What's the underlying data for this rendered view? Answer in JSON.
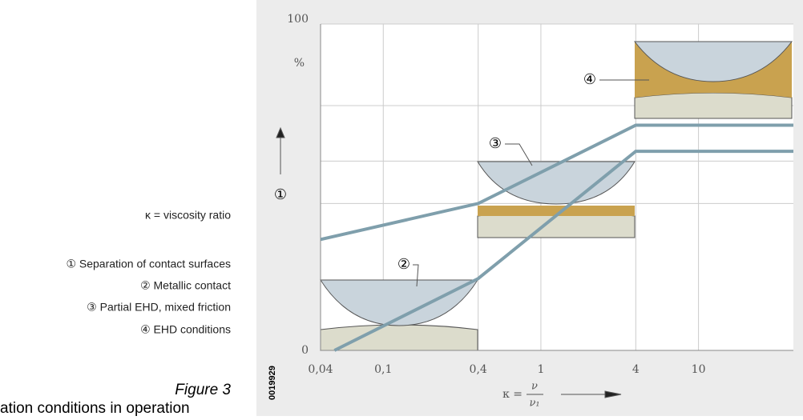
{
  "chart_data": {
    "type": "line",
    "side_texts": [
      "κ = viscosity ratio",
      "① Separation of contact surfaces",
      "② Metallic contact",
      "③ Partial EHD, mixed friction",
      "④ EHD conditions"
    ],
    "figure_label": "Figure 3",
    "caption_fragment": "ation conditions in operation",
    "code": "0019929",
    "y_label": "①",
    "y_unit": "%",
    "x_label": {
      "prefix": "κ =",
      "numerator": "ν",
      "denominator": "ν₁"
    },
    "annotations": [
      "②",
      "③",
      "④"
    ],
    "xscale": "log",
    "xlim": [
      0.04,
      40
    ],
    "xticks": [
      {
        "value": 0.04,
        "label": "0,04"
      },
      {
        "value": 0.1,
        "label": "0,1"
      },
      {
        "value": 0.4,
        "label": "0,4"
      },
      1,
      4,
      10
    ],
    "ylim": [
      0,
      100
    ],
    "yticks": [
      0,
      100
    ],
    "y_unit_value": 88,
    "ygrid": [
      45,
      58,
      75
    ],
    "grid": true,
    "series": [
      {
        "color": "#7f9fac",
        "x": [
          0.04,
          0.4,
          4,
          40
        ],
        "values": [
          34,
          45,
          69,
          69
        ]
      },
      {
        "color": "#7f9fac",
        "x": [
          0.049,
          0.4,
          4,
          40
        ],
        "values": [
          0,
          22,
          61,
          61
        ]
      }
    ]
  }
}
